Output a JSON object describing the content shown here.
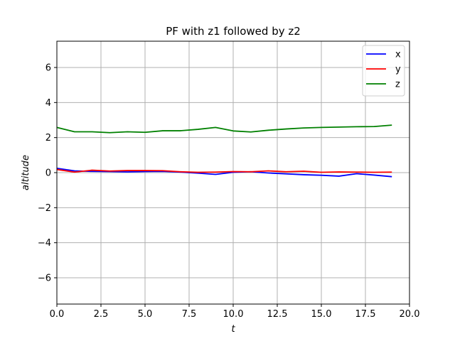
{
  "chart_data": {
    "type": "line",
    "title": "PF with z1 followed by z2",
    "xlabel": "t",
    "ylabel": "altitude",
    "xlim": [
      0,
      20
    ],
    "ylim": [
      -7.5,
      7.5
    ],
    "xticks": [
      "0.0",
      "2.5",
      "5.0",
      "7.5",
      "10.0",
      "12.5",
      "15.0",
      "17.5",
      "20.0"
    ],
    "xtick_values": [
      0,
      2.5,
      5,
      7.5,
      10,
      12.5,
      15,
      17.5,
      20
    ],
    "yticks": [
      "6",
      "4",
      "2",
      "0",
      "−2",
      "−4",
      "−6"
    ],
    "ytick_values": [
      6,
      4,
      2,
      0,
      -2,
      -4,
      -6
    ],
    "grid": true,
    "legend_position": "top-right",
    "x": [
      0,
      1,
      2,
      3,
      4,
      5,
      6,
      7,
      8,
      9,
      10,
      11,
      12,
      13,
      14,
      15,
      16,
      17,
      18,
      19
    ],
    "series": [
      {
        "name": "x",
        "color": "#0000ff",
        "values": [
          0.25,
          0.1,
          0.07,
          0.06,
          0.04,
          0.06,
          0.07,
          0.03,
          -0.03,
          -0.1,
          0.02,
          0.05,
          -0.02,
          -0.07,
          -0.12,
          -0.15,
          -0.2,
          -0.06,
          -0.14,
          -0.23
        ]
      },
      {
        "name": "y",
        "color": "#ff0000",
        "values": [
          0.18,
          0.03,
          0.14,
          0.09,
          0.12,
          0.12,
          0.11,
          0.05,
          0.02,
          0.03,
          0.06,
          0.05,
          0.1,
          0.05,
          0.08,
          0.02,
          0.04,
          0.03,
          0.02,
          0.03
        ]
      },
      {
        "name": "z",
        "color": "#008000",
        "values": [
          2.58,
          2.33,
          2.33,
          2.28,
          2.33,
          2.3,
          2.39,
          2.39,
          2.47,
          2.58,
          2.38,
          2.32,
          2.42,
          2.49,
          2.55,
          2.58,
          2.6,
          2.62,
          2.63,
          2.71
        ]
      }
    ]
  }
}
